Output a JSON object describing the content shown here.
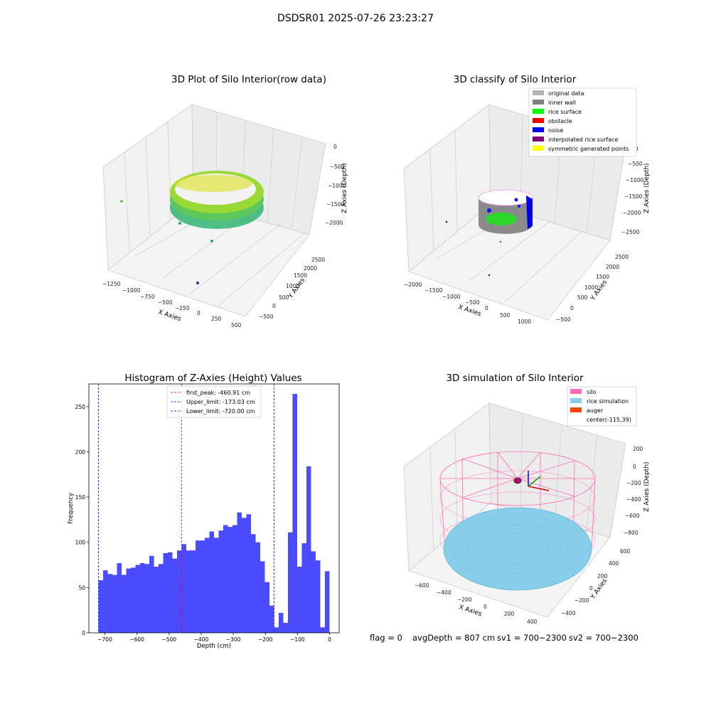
{
  "figure": {
    "title": "DSDSR01 2025-07-26 23:23:27"
  },
  "panels": {
    "raw3d": {
      "title": "3D Plot of Silo Interior(row data)",
      "xlabel": "X Axies",
      "ylabel": "Y Axies",
      "zlabel": "Z Axies (Depth)",
      "xticks": [
        "−1250",
        "−1000",
        "−750",
        "−500",
        "−250",
        "0",
        "250",
        "500"
      ],
      "yticks": [
        "−500",
        "0",
        "500",
        "1000",
        "1500",
        "2000",
        "2500"
      ],
      "zticks": [
        "0",
        "−500",
        "−1000",
        "−1500",
        "−2000"
      ]
    },
    "classify3d": {
      "title": "3D classify of Silo Interior",
      "xlabel": "X Axies",
      "ylabel": "Y Axies",
      "zlabel": "Z Axies (Depth)",
      "xticks": [
        "−2000",
        "−1500",
        "−1000",
        "−500",
        "0",
        "500",
        "1000"
      ],
      "yticks": [
        "−500",
        "0",
        "500",
        "1000",
        "1500",
        "2000",
        "2500"
      ],
      "zticks": [
        "0",
        "−500",
        "−1000",
        "−1500",
        "−2000",
        "−2500"
      ],
      "legend": [
        {
          "label": "original data",
          "color": "#b3b3b3"
        },
        {
          "label": "inner wall",
          "color": "#808080"
        },
        {
          "label": "rice surface",
          "color": "#00ff00"
        },
        {
          "label": "obstacle",
          "color": "#ff0000"
        },
        {
          "label": "noise",
          "color": "#0000ff"
        },
        {
          "label": "interpolated rice surface",
          "color": "#800080"
        },
        {
          "label": "symmetric generated points",
          "color": "#ffff00"
        }
      ]
    },
    "simulation3d": {
      "title": "3D simulation of Silo Interior",
      "xlabel": "X Axies",
      "ylabel": "Y Axies",
      "zlabel": "Z Axies (Depth)",
      "xticks": [
        "−600",
        "−400",
        "−200",
        "0",
        "200",
        "400"
      ],
      "yticks": [
        "−400",
        "−200",
        "0",
        "200",
        "400",
        "600"
      ],
      "zticks": [
        "200",
        "0",
        "−200",
        "−400",
        "−600",
        "−800"
      ],
      "legend": [
        {
          "label": "silo",
          "color": "#ff69b4"
        },
        {
          "label": "rice simulation",
          "color": "#87ceeb"
        },
        {
          "label": "auger",
          "color": "#ff4500"
        },
        {
          "label": "center(-115,39)",
          "color": ""
        }
      ]
    }
  },
  "status": {
    "flag": "flag = 0",
    "avg_depth": "avgDepth = 807 cm",
    "sv1": "sv1 = 700~2300",
    "sv2": "sv2 = 700~2300"
  },
  "chart_data": [
    {
      "type": "histogram",
      "title": "Histogram of Z-Axies (Height) Values",
      "xlabel": "Depth (cm)",
      "ylabel": "Frequency",
      "xlim": [
        -750,
        30
      ],
      "ylim": [
        0,
        275
      ],
      "xticks": [
        -700,
        -600,
        -500,
        -400,
        -300,
        -200,
        -100,
        0
      ],
      "yticks": [
        0,
        50,
        100,
        150,
        200,
        250
      ],
      "bar_color": "#4a4aff",
      "bin_start": -720,
      "bin_width": 14.4,
      "values": [
        58,
        69,
        65,
        64,
        77,
        64,
        71,
        72,
        75,
        77,
        76,
        85,
        73,
        76,
        88,
        89,
        82,
        91,
        98,
        91,
        91,
        102,
        102,
        105,
        112,
        105,
        113,
        119,
        117,
        119,
        133,
        127,
        131,
        109,
        100,
        79,
        56,
        30,
        6,
        22,
        11,
        111,
        264,
        73,
        99,
        184,
        90,
        80,
        6,
        68
      ],
      "reference_lines": [
        {
          "label": "first_peak: -460.91 cm",
          "x": -460.91,
          "color": "#ff0000",
          "style": "dashed"
        },
        {
          "label": "Upper_limit: -173.03 cm",
          "x": -173.03,
          "color": "#0000ff",
          "style": "dashed"
        },
        {
          "label": "Lower_limit: -720.00 cm",
          "x": -720.0,
          "color": "#0000ff",
          "style": "dashed"
        }
      ]
    }
  ]
}
